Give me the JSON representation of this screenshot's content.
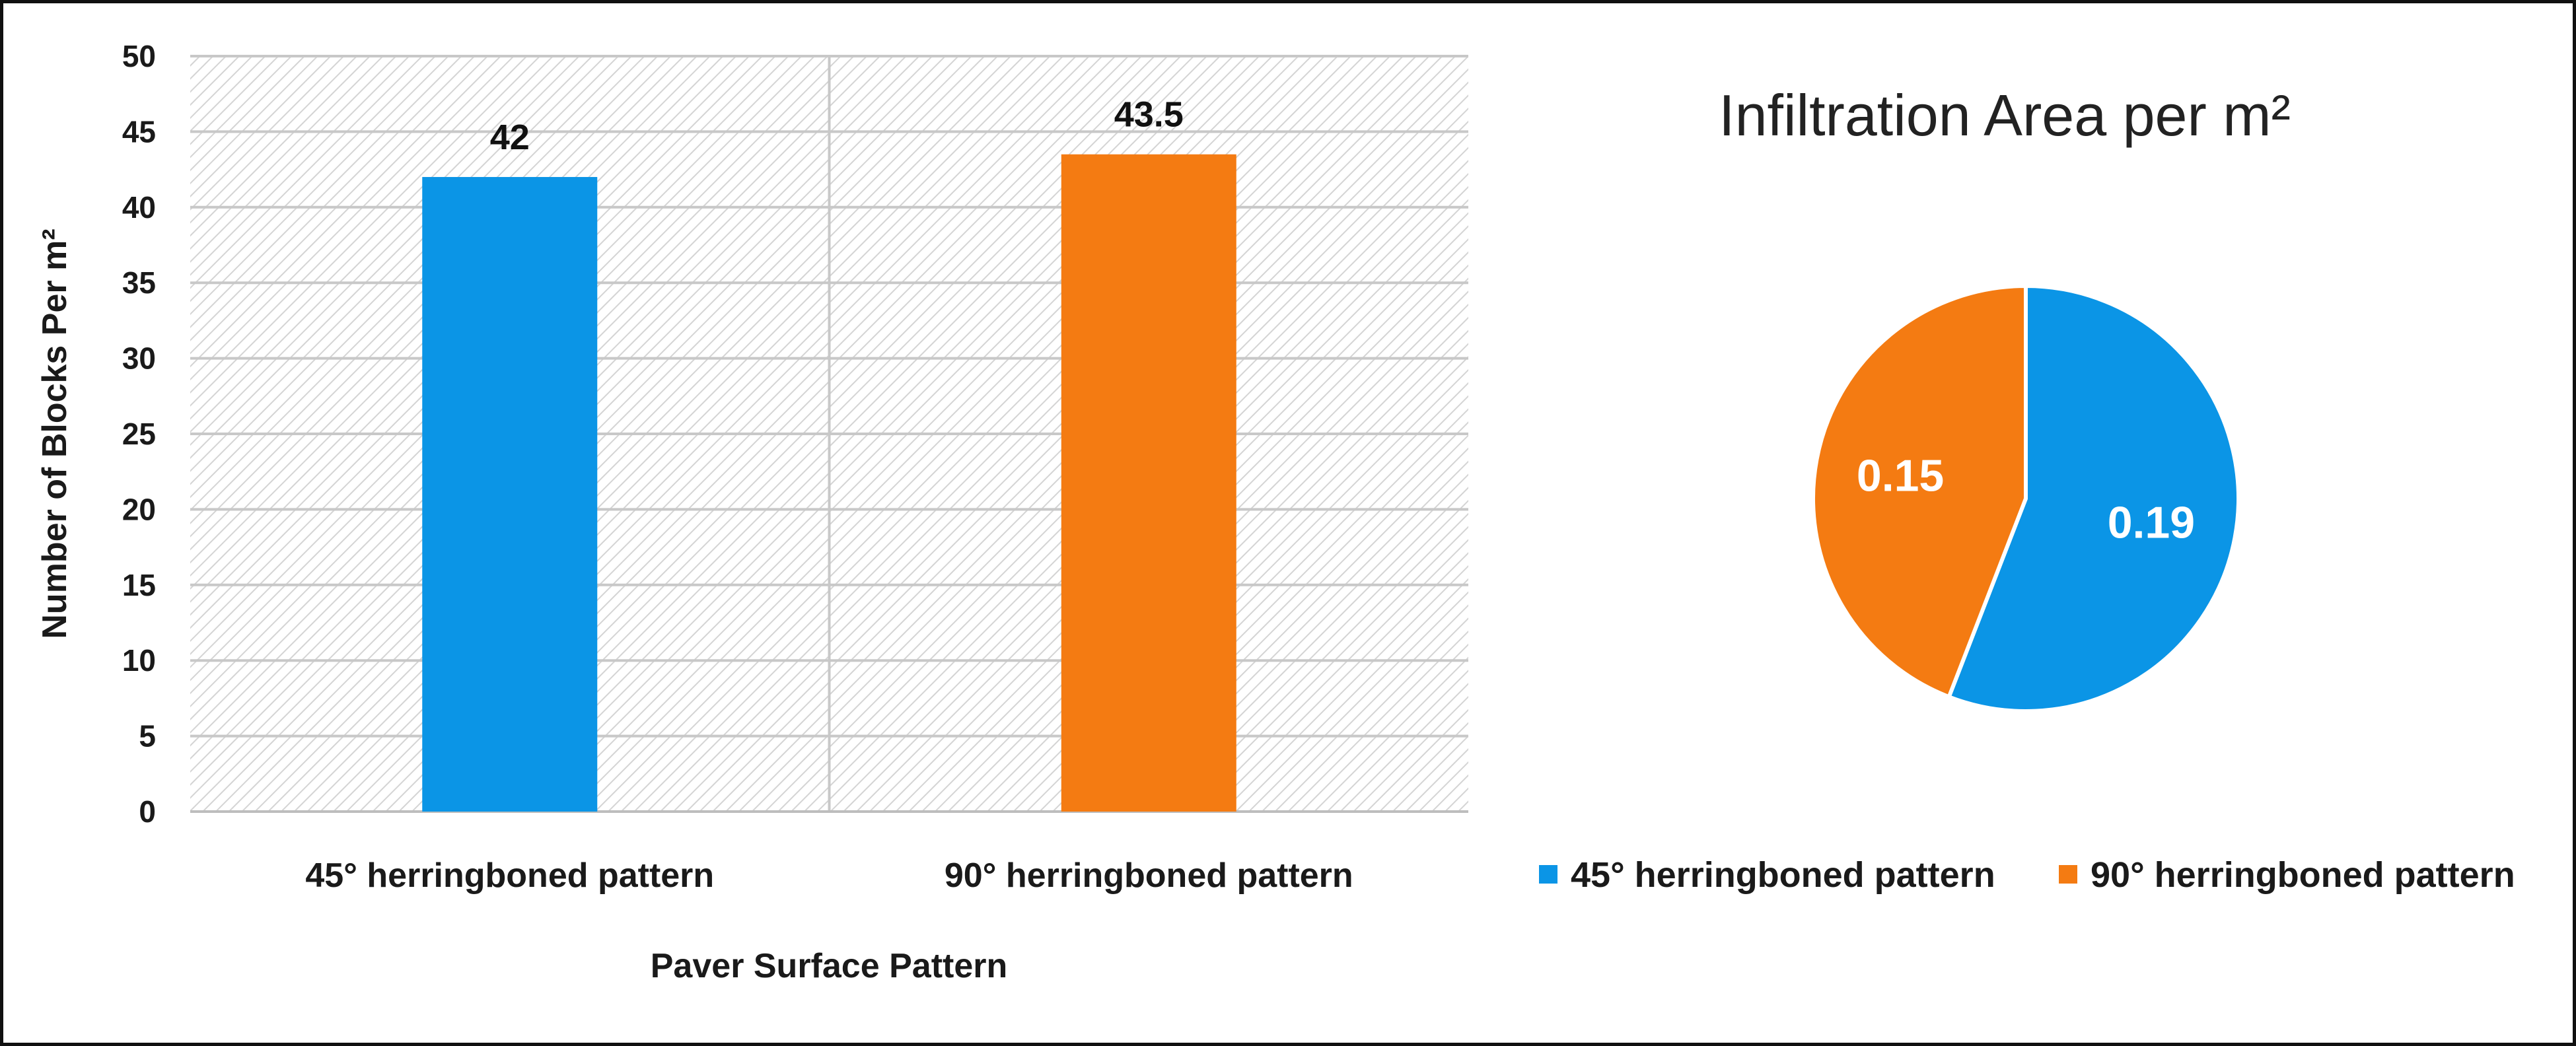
{
  "chart_data": [
    {
      "type": "bar",
      "categories": [
        "45° herringboned pattern",
        "90° herringboned pattern"
      ],
      "values": [
        42,
        43.5
      ],
      "data_labels": [
        "42",
        "43.5"
      ],
      "colors": [
        "#0b95e6",
        "#f47b12"
      ],
      "title": "",
      "xlabel": "Paver Surface Pattern",
      "ylabel": "Number of Blocks Per m²",
      "ylim": [
        0,
        50
      ],
      "yticks": [
        0,
        5,
        10,
        15,
        20,
        25,
        30,
        35,
        40,
        45,
        50
      ],
      "grid": true,
      "background": "hatched"
    },
    {
      "type": "pie",
      "title": "Infiltration Area per m²",
      "labels": [
        "45° herringboned pattern",
        "90° herringboned pattern"
      ],
      "values": [
        0.19,
        0.15
      ],
      "data_labels": [
        "0.19",
        "0.15"
      ],
      "colors": [
        "#0b95e6",
        "#f47b12"
      ],
      "legend": "bottom"
    }
  ]
}
